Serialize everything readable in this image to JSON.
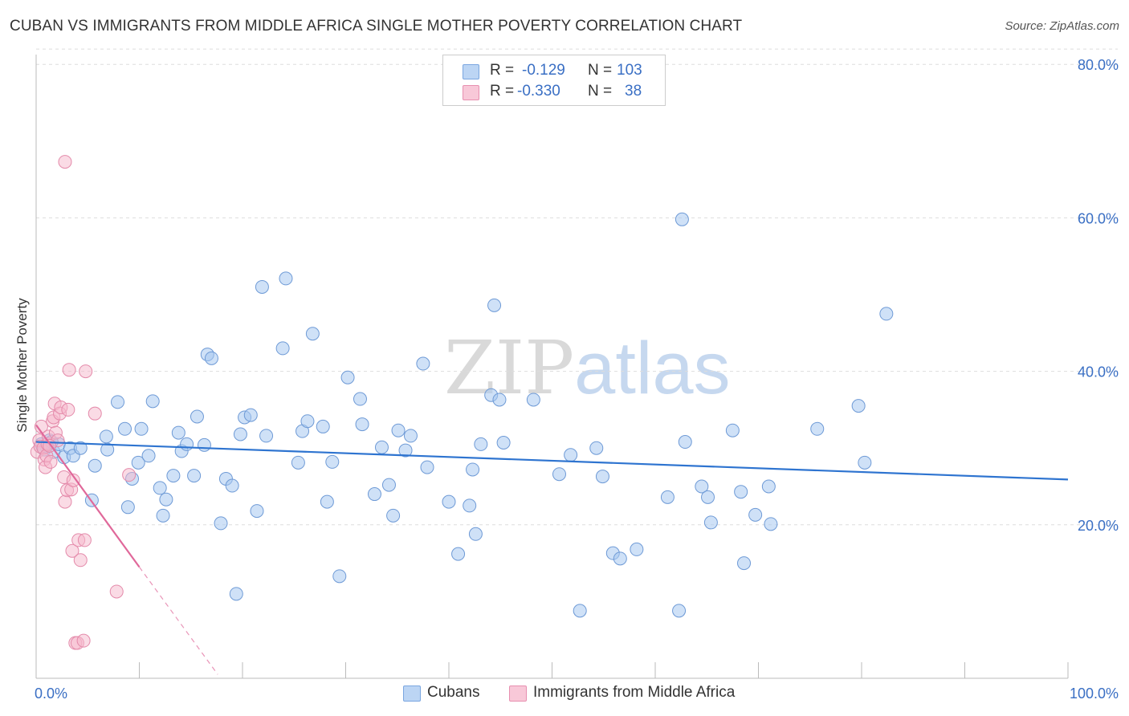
{
  "title": "CUBAN VS IMMIGRANTS FROM MIDDLE AFRICA SINGLE MOTHER POVERTY CORRELATION CHART",
  "source": "Source: ZipAtlas.com",
  "watermark": {
    "part1": "ZIP",
    "part2": "atlas"
  },
  "legend": {
    "rows": [
      {
        "r_label": "R =",
        "r_value": "-0.129",
        "n_label": "N =",
        "n_value": "103"
      },
      {
        "r_label": "R =",
        "r_value": "-0.330",
        "n_label": "N =",
        "n_value": "38"
      }
    ]
  },
  "bottom_legend": {
    "series1": "Cubans",
    "series2": "Immigrants from Middle Africa"
  },
  "colors": {
    "blue": "#a8c8f0",
    "blue_line": "#2e74d0",
    "pink": "#f5b8cb",
    "pink_line": "#e0689a",
    "axis_text": "#3a6fc4"
  },
  "chart_data": {
    "type": "scatter",
    "title": "CUBAN VS IMMIGRANTS FROM MIDDLE AFRICA SINGLE MOTHER POVERTY CORRELATION CHART",
    "xlabel": "",
    "ylabel": "Single Mother Poverty",
    "x_tick_labels": [
      "0.0%",
      "100.0%"
    ],
    "y_tick_labels": [
      "20.0%",
      "40.0%",
      "60.0%",
      "80.0%"
    ],
    "y_ticks": [
      20,
      40,
      60,
      80
    ],
    "xlim": [
      0,
      100
    ],
    "ylim": [
      0,
      82
    ],
    "series": [
      {
        "name": "Cubans",
        "trend": {
          "x": [
            0,
            100
          ],
          "y": [
            30.8,
            25.9
          ]
        },
        "points": [
          [
            0.5,
            30.5
          ],
          [
            0.8,
            29.8
          ],
          [
            1.0,
            30.2
          ],
          [
            1.3,
            31.0
          ],
          [
            1.7,
            29.5
          ],
          [
            2.2,
            30.5
          ],
          [
            2.7,
            28.8
          ],
          [
            3.3,
            30.0
          ],
          [
            3.6,
            29.0
          ],
          [
            4.3,
            30.0
          ],
          [
            5.4,
            23.2
          ],
          [
            5.7,
            27.7
          ],
          [
            6.8,
            31.5
          ],
          [
            6.9,
            29.8
          ],
          [
            7.9,
            36.0
          ],
          [
            8.6,
            32.5
          ],
          [
            8.9,
            22.3
          ],
          [
            9.3,
            26.0
          ],
          [
            9.9,
            28.1
          ],
          [
            10.2,
            32.5
          ],
          [
            10.9,
            29.0
          ],
          [
            11.3,
            36.1
          ],
          [
            12.0,
            24.8
          ],
          [
            12.3,
            21.2
          ],
          [
            12.6,
            23.3
          ],
          [
            13.3,
            26.4
          ],
          [
            13.8,
            32.0
          ],
          [
            14.1,
            29.6
          ],
          [
            14.6,
            30.5
          ],
          [
            15.3,
            26.4
          ],
          [
            15.6,
            34.1
          ],
          [
            16.3,
            30.4
          ],
          [
            16.6,
            42.2
          ],
          [
            17.0,
            41.7
          ],
          [
            17.9,
            20.2
          ],
          [
            18.4,
            26.0
          ],
          [
            19.0,
            25.1
          ],
          [
            19.4,
            11.0
          ],
          [
            19.8,
            31.8
          ],
          [
            20.2,
            34.0
          ],
          [
            20.8,
            34.3
          ],
          [
            21.4,
            21.8
          ],
          [
            21.9,
            51.0
          ],
          [
            22.3,
            31.6
          ],
          [
            23.9,
            43.0
          ],
          [
            24.2,
            52.1
          ],
          [
            25.4,
            28.1
          ],
          [
            25.8,
            32.2
          ],
          [
            26.3,
            33.5
          ],
          [
            26.8,
            44.9
          ],
          [
            27.8,
            32.8
          ],
          [
            28.2,
            23.0
          ],
          [
            28.7,
            28.2
          ],
          [
            29.4,
            13.3
          ],
          [
            30.2,
            39.2
          ],
          [
            31.6,
            33.1
          ],
          [
            31.4,
            36.4
          ],
          [
            32.8,
            24.0
          ],
          [
            33.5,
            30.1
          ],
          [
            34.2,
            25.2
          ],
          [
            34.6,
            21.2
          ],
          [
            35.1,
            32.3
          ],
          [
            35.8,
            29.7
          ],
          [
            36.3,
            31.6
          ],
          [
            37.5,
            41.0
          ],
          [
            37.9,
            27.5
          ],
          [
            40.0,
            23.0
          ],
          [
            40.9,
            16.2
          ],
          [
            42.0,
            22.5
          ],
          [
            42.3,
            27.2
          ],
          [
            42.6,
            18.8
          ],
          [
            43.1,
            30.5
          ],
          [
            44.1,
            36.9
          ],
          [
            44.4,
            48.6
          ],
          [
            44.9,
            36.3
          ],
          [
            45.3,
            30.7
          ],
          [
            48.2,
            36.3
          ],
          [
            50.7,
            26.6
          ],
          [
            51.8,
            29.1
          ],
          [
            52.7,
            8.8
          ],
          [
            54.3,
            30.0
          ],
          [
            54.9,
            26.3
          ],
          [
            55.9,
            16.3
          ],
          [
            56.6,
            15.6
          ],
          [
            58.2,
            16.8
          ],
          [
            61.2,
            23.6
          ],
          [
            62.3,
            8.8
          ],
          [
            62.6,
            59.8
          ],
          [
            62.9,
            30.8
          ],
          [
            64.5,
            25.0
          ],
          [
            65.1,
            23.6
          ],
          [
            65.4,
            20.3
          ],
          [
            67.5,
            32.3
          ],
          [
            68.3,
            24.3
          ],
          [
            68.6,
            15.0
          ],
          [
            69.7,
            21.3
          ],
          [
            71.2,
            20.1
          ],
          [
            71.0,
            25.0
          ],
          [
            75.7,
            32.5
          ],
          [
            79.7,
            35.5
          ],
          [
            80.3,
            28.1
          ],
          [
            82.4,
            47.5
          ],
          [
            1.5,
            30.8
          ]
        ]
      },
      {
        "name": "Immigrants from Middle Africa",
        "trend": {
          "x": [
            0,
            10
          ],
          "y": [
            33.0,
            14.5
          ]
        },
        "trend_dashed": {
          "x": [
            10,
            17.6
          ],
          "y": [
            14.5,
            0.5
          ]
        },
        "points": [
          [
            0.1,
            29.5
          ],
          [
            0.3,
            31.0
          ],
          [
            0.4,
            30.2
          ],
          [
            0.5,
            32.8
          ],
          [
            0.7,
            30.0
          ],
          [
            0.8,
            28.5
          ],
          [
            0.9,
            27.5
          ],
          [
            1.0,
            29.0
          ],
          [
            1.1,
            30.5
          ],
          [
            1.2,
            31.5
          ],
          [
            1.4,
            28.2
          ],
          [
            1.6,
            33.5
          ],
          [
            1.7,
            34.0
          ],
          [
            1.8,
            35.8
          ],
          [
            1.9,
            32.0
          ],
          [
            2.1,
            31.0
          ],
          [
            2.3,
            34.5
          ],
          [
            2.4,
            35.3
          ],
          [
            2.7,
            26.2
          ],
          [
            2.8,
            23.0
          ],
          [
            3.0,
            24.5
          ],
          [
            3.2,
            40.2
          ],
          [
            3.4,
            24.6
          ],
          [
            3.5,
            16.6
          ],
          [
            3.6,
            25.8
          ],
          [
            3.8,
            4.6
          ],
          [
            4.0,
            4.6
          ],
          [
            4.1,
            18.0
          ],
          [
            4.3,
            15.4
          ],
          [
            4.6,
            4.9
          ],
          [
            4.7,
            18.0
          ],
          [
            4.8,
            40.0
          ],
          [
            5.7,
            34.5
          ],
          [
            7.8,
            11.3
          ],
          [
            9.0,
            26.5
          ],
          [
            2.8,
            67.3
          ],
          [
            3.1,
            35.0
          ],
          [
            1.3,
            30.3
          ]
        ]
      }
    ]
  }
}
